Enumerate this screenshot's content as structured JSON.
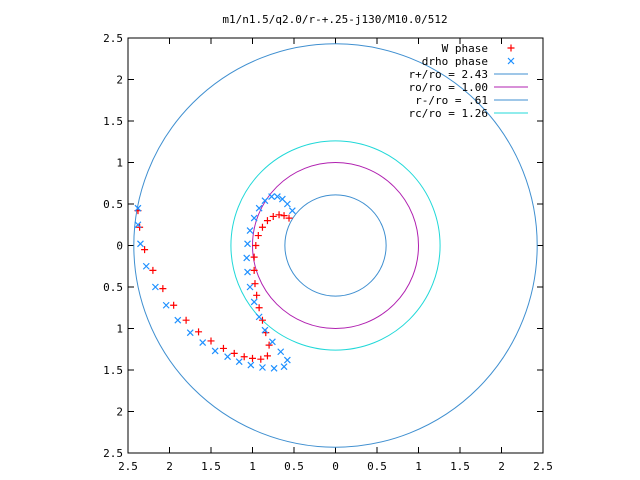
{
  "chart_data": {
    "type": "scatter",
    "title": "m1/n1.5/q2.0/r-+.25-j130/M10.0/512",
    "xlim": [
      -2.5,
      2.5
    ],
    "ylim": [
      -2.5,
      2.5
    ],
    "x_ticks": [
      {
        "value": -2.5,
        "label": "2.5"
      },
      {
        "value": -2,
        "label": "2"
      },
      {
        "value": -1.5,
        "label": "1.5"
      },
      {
        "value": -1,
        "label": "1"
      },
      {
        "value": -0.5,
        "label": "0.5"
      },
      {
        "value": 0,
        "label": "0"
      },
      {
        "value": 0.5,
        "label": "0.5"
      },
      {
        "value": 1,
        "label": "1"
      },
      {
        "value": 1.5,
        "label": "1.5"
      },
      {
        "value": 2,
        "label": "2"
      },
      {
        "value": 2.5,
        "label": "2.5"
      }
    ],
    "y_ticks": [
      {
        "value": 2.5,
        "label": "2.5"
      },
      {
        "value": 2,
        "label": "2"
      },
      {
        "value": 1.5,
        "label": "1.5"
      },
      {
        "value": 1,
        "label": "1"
      },
      {
        "value": 0.5,
        "label": "0.5"
      },
      {
        "value": 0,
        "label": "0"
      },
      {
        "value": -0.5,
        "label": "0.5"
      },
      {
        "value": -1,
        "label": "1"
      },
      {
        "value": -1.5,
        "label": "1.5"
      },
      {
        "value": -2,
        "label": "2"
      },
      {
        "value": -2.5,
        "label": "2.5"
      }
    ],
    "grid": false,
    "legend_position": "top-right",
    "series": [
      {
        "name": "W phase",
        "kind": "points",
        "marker": "plus",
        "color": "#ff0000",
        "points": [
          [
            -0.56,
            0.33
          ],
          [
            -0.62,
            0.36
          ],
          [
            -0.68,
            0.37
          ],
          [
            -0.75,
            0.35
          ],
          [
            -0.82,
            0.3
          ],
          [
            -0.88,
            0.22
          ],
          [
            -0.93,
            0.12
          ],
          [
            -0.96,
            0.0
          ],
          [
            -0.98,
            -0.14
          ],
          [
            -0.98,
            -0.3
          ],
          [
            -0.97,
            -0.46
          ],
          [
            -0.95,
            -0.6
          ],
          [
            -0.92,
            -0.75
          ],
          [
            -0.88,
            -0.9
          ],
          [
            -0.84,
            -1.05
          ],
          [
            -0.8,
            -1.2
          ],
          [
            -0.82,
            -1.33
          ],
          [
            -0.9,
            -1.37
          ],
          [
            -1.0,
            -1.36
          ],
          [
            -1.1,
            -1.34
          ],
          [
            -1.22,
            -1.3
          ],
          [
            -1.35,
            -1.24
          ],
          [
            -1.5,
            -1.15
          ],
          [
            -1.65,
            -1.04
          ],
          [
            -1.8,
            -0.9
          ],
          [
            -1.95,
            -0.72
          ],
          [
            -2.08,
            -0.52
          ],
          [
            -2.2,
            -0.3
          ],
          [
            -2.3,
            -0.05
          ],
          [
            -2.36,
            0.22
          ],
          [
            -2.38,
            0.42
          ]
        ]
      },
      {
        "name": "drho phase",
        "kind": "points",
        "marker": "cross",
        "color": "#1e90ff",
        "points": [
          [
            -0.52,
            0.42
          ],
          [
            -0.58,
            0.5
          ],
          [
            -0.64,
            0.56
          ],
          [
            -0.7,
            0.59
          ],
          [
            -0.77,
            0.59
          ],
          [
            -0.85,
            0.54
          ],
          [
            -0.92,
            0.45
          ],
          [
            -0.98,
            0.33
          ],
          [
            -1.03,
            0.18
          ],
          [
            -1.06,
            0.02
          ],
          [
            -1.07,
            -0.15
          ],
          [
            -1.06,
            -0.32
          ],
          [
            -1.03,
            -0.5
          ],
          [
            -0.98,
            -0.68
          ],
          [
            -0.92,
            -0.86
          ],
          [
            -0.85,
            -1.02
          ],
          [
            -0.76,
            -1.16
          ],
          [
            -0.66,
            -1.28
          ],
          [
            -0.58,
            -1.38
          ],
          [
            -0.62,
            -1.46
          ],
          [
            -0.74,
            -1.48
          ],
          [
            -0.88,
            -1.47
          ],
          [
            -1.02,
            -1.44
          ],
          [
            -1.16,
            -1.4
          ],
          [
            -1.3,
            -1.34
          ],
          [
            -1.45,
            -1.27
          ],
          [
            -1.6,
            -1.17
          ],
          [
            -1.75,
            -1.05
          ],
          [
            -1.9,
            -0.9
          ],
          [
            -2.04,
            -0.72
          ],
          [
            -2.17,
            -0.5
          ],
          [
            -2.28,
            -0.25
          ],
          [
            -2.35,
            0.02
          ],
          [
            -2.38,
            0.25
          ],
          [
            -2.38,
            0.45
          ]
        ]
      },
      {
        "name": "r+/ro = 2.43",
        "kind": "circle",
        "radius": 2.43,
        "color": "#3f8fd0"
      },
      {
        "name": "ro/ro = 1.00",
        "kind": "circle",
        "radius": 1.0,
        "color": "#b020b0"
      },
      {
        "name": "r-/ro = .61",
        "kind": "circle",
        "radius": 0.61,
        "color": "#3f8fd0"
      },
      {
        "name": "rc/ro = 1.26",
        "kind": "circle",
        "radius": 1.26,
        "color": "#20d8d8"
      }
    ]
  }
}
